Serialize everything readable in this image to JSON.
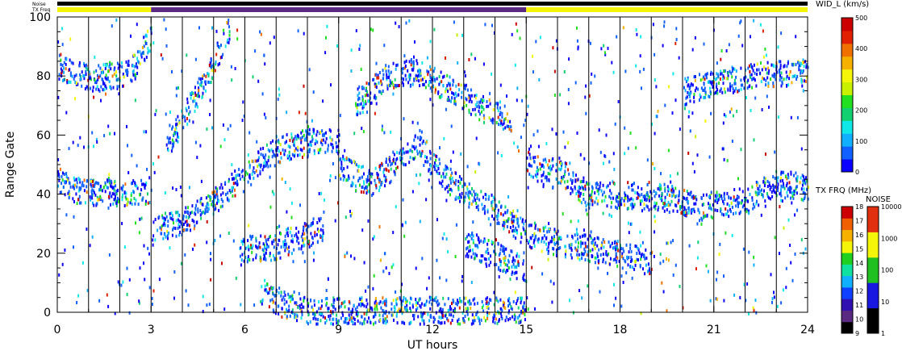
{
  "chart_data": {
    "type": "heatmap",
    "xlabel": "UT hours",
    "ylabel": "Range Gate",
    "xlim": [
      0,
      24
    ],
    "ylim": [
      0,
      100
    ],
    "x_ticks": [
      "0",
      "3",
      "6",
      "9",
      "12",
      "15",
      "18",
      "21",
      "24"
    ],
    "y_ticks": [
      "0",
      "20",
      "40",
      "60",
      "80",
      "100"
    ],
    "top_bar_labels": {
      "noise": "Noise",
      "txfreq": "TX Freq"
    },
    "tx_freq_bar_segments": [
      {
        "start": 0,
        "end": 3,
        "color": "#f5f50a"
      },
      {
        "start": 3,
        "end": 15,
        "color": "#5a2a82"
      },
      {
        "start": 15,
        "end": 24,
        "color": "#f5f50a"
      }
    ],
    "scan_boundaries_ut": [
      1,
      2,
      3,
      4,
      5,
      6,
      7,
      8,
      9,
      10,
      11,
      12,
      13,
      14,
      15,
      16,
      17,
      18,
      19,
      20,
      21,
      22,
      23
    ],
    "data_tracks": [
      {
        "t": [
          0,
          0.5,
          1,
          1.5,
          2,
          2.5,
          3
        ],
        "gate": [
          45,
          42,
          41,
          41,
          41,
          41,
          42
        ]
      },
      {
        "t": [
          0,
          0.5,
          1,
          1.5,
          2,
          2.5,
          3
        ],
        "gate": [
          84,
          81,
          80,
          80,
          81,
          84,
          95
        ]
      },
      {
        "t": [
          3,
          3.5,
          4,
          4.5,
          5,
          5.5,
          6,
          6.5,
          7,
          7.5,
          8,
          8.5,
          9
        ],
        "gate": [
          27,
          30,
          31,
          34,
          38,
          43,
          46,
          52,
          55,
          57,
          58,
          59,
          58
        ]
      },
      {
        "t": [
          3.5,
          4,
          4.5,
          5,
          5.5
        ],
        "gate": [
          57,
          66,
          75,
          85,
          97
        ]
      },
      {
        "t": [
          5.8,
          6.5,
          7,
          7.5,
          8,
          8.5
        ],
        "gate": [
          22,
          22,
          23,
          25,
          27,
          29
        ]
      },
      {
        "t": [
          9,
          10,
          11,
          11.6,
          12,
          12.5,
          13,
          13.5,
          14,
          14.5,
          15
        ],
        "gate": [
          50,
          44,
          52,
          58,
          50,
          45,
          41,
          38,
          35,
          31,
          27
        ]
      },
      {
        "t": [
          13,
          13.5,
          14,
          14.5,
          15
        ],
        "gate": [
          24,
          22,
          20,
          17,
          15
        ]
      },
      {
        "t": [
          9.5,
          10.5,
          11.5,
          12.5,
          13.5,
          14.5
        ],
        "gate": [
          70,
          80,
          82,
          76,
          70,
          66
        ]
      },
      {
        "t": [
          6.5,
          7,
          7.5,
          8,
          8.5,
          9,
          10,
          11,
          12,
          13,
          14,
          15
        ],
        "gate": [
          8,
          4,
          2,
          1,
          1,
          1,
          1,
          1,
          1,
          1,
          1,
          1
        ]
      },
      {
        "t": [
          15,
          15.5,
          16,
          16.5,
          17,
          17.5,
          18,
          19,
          20,
          20.5,
          21,
          22,
          23,
          24
        ],
        "gate": [
          52,
          48,
          49,
          44,
          40,
          40,
          40,
          40,
          38,
          36,
          37,
          38,
          44,
          42
        ]
      },
      {
        "t": [
          15,
          16,
          17,
          18,
          19
        ],
        "gate": [
          27,
          24,
          22,
          20,
          17
        ]
      },
      {
        "t": [
          20,
          21,
          22,
          23,
          24
        ],
        "gate": [
          75,
          78,
          80,
          81,
          82
        ]
      }
    ],
    "colorbars": [
      {
        "title": "WID_L (km/s)",
        "ticks": [
          "500",
          "400",
          "300",
          "200",
          "100",
          "0"
        ],
        "colors": [
          "#0a00ff",
          "#1060ff",
          "#10b0ff",
          "#10e8e8",
          "#10d070",
          "#20e020",
          "#c8f000",
          "#f5f50a",
          "#f5b000",
          "#f07000",
          "#e02000",
          "#cc0000"
        ]
      },
      {
        "title": "TX FRQ (MHz)",
        "ticks": [
          "18",
          "17",
          "16",
          "15",
          "14",
          "13",
          "12",
          "11",
          "10",
          "9"
        ],
        "colors": [
          "#000000",
          "#5a2a82",
          "#3010b0",
          "#1040ff",
          "#10b0ff",
          "#10e0a0",
          "#20d020",
          "#f5f50a",
          "#f5b000",
          "#f06000",
          "#cc0000"
        ]
      },
      {
        "title": "NOISE",
        "ticks": [
          "10000",
          "1000",
          "100",
          "10",
          "1"
        ],
        "colors": [
          "#000000",
          "#1818e0",
          "#20c020",
          "#f5f50a",
          "#e03010"
        ]
      }
    ]
  }
}
